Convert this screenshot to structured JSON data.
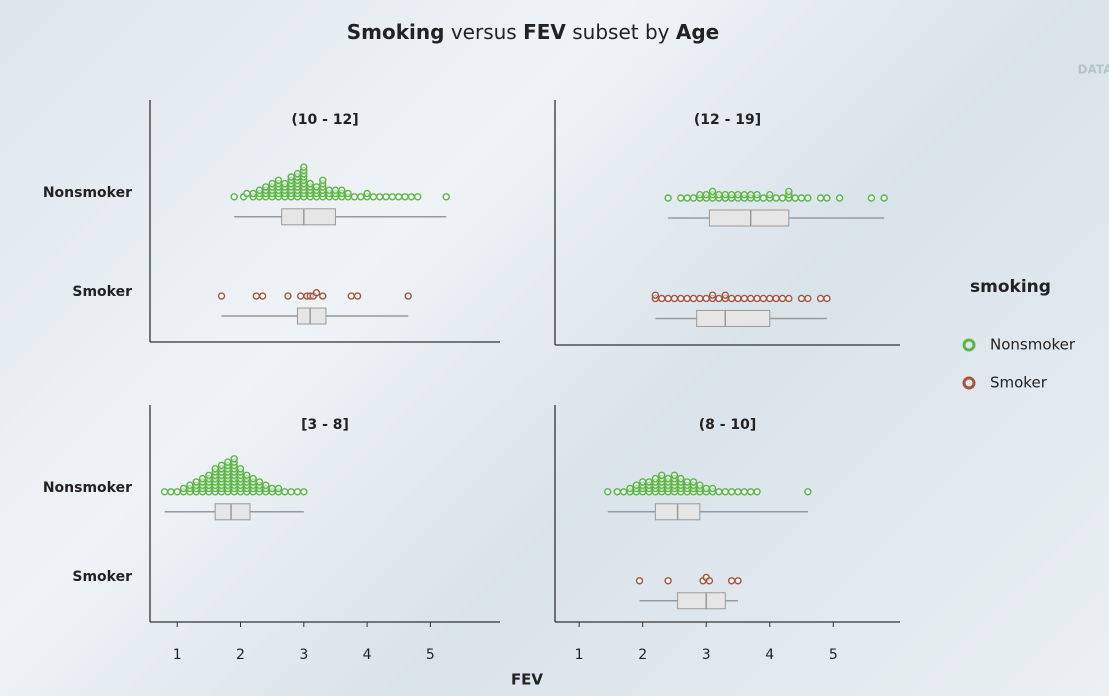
{
  "chart_data": {
    "type": "dotbox",
    "title": [
      {
        "text": "Smoking",
        "bold": true
      },
      {
        "text": "versus",
        "bold": false
      },
      {
        "text": "FEV",
        "bold": true
      },
      {
        "text": "subset by",
        "bold": false
      },
      {
        "text": "Age",
        "bold": true
      }
    ],
    "watermark": "DATA",
    "xlabel": "FEV",
    "xticks": [
      1,
      2,
      3,
      4,
      5
    ],
    "legend_title": "smoking",
    "series": [
      {
        "name": "Nonsmoker",
        "color": "#5cb546"
      },
      {
        "name": "Smoker",
        "color": "#a3553f"
      }
    ],
    "panels": [
      {
        "title": "(10 - 12]",
        "xlim": [
          0.57,
          6.1
        ],
        "groups": [
          {
            "points": [
              1.9,
              2.05,
              2.1,
              2.2,
              2.2,
              2.3,
              2.3,
              2.3,
              2.4,
              2.4,
              2.4,
              2.4,
              2.5,
              2.5,
              2.5,
              2.5,
              2.5,
              2.6,
              2.6,
              2.6,
              2.6,
              2.6,
              2.6,
              2.7,
              2.7,
              2.7,
              2.7,
              2.7,
              2.8,
              2.8,
              2.8,
              2.8,
              2.8,
              2.8,
              2.8,
              2.9,
              2.9,
              2.9,
              2.9,
              2.9,
              2.9,
              2.9,
              2.9,
              3.0,
              3.0,
              3.0,
              3.0,
              3.0,
              3.0,
              3.0,
              3.0,
              3.0,
              3.0,
              3.1,
              3.1,
              3.1,
              3.1,
              3.1,
              3.2,
              3.2,
              3.2,
              3.2,
              3.3,
              3.3,
              3.3,
              3.3,
              3.3,
              3.3,
              3.4,
              3.4,
              3.4,
              3.5,
              3.5,
              3.5,
              3.6,
              3.6,
              3.6,
              3.7,
              3.7,
              3.8,
              3.9,
              4.0,
              4.0,
              4.1,
              4.2,
              4.3,
              4.4,
              4.5,
              4.6,
              4.7,
              4.8,
              5.25
            ],
            "box": {
              "min": 1.9,
              "q1": 2.65,
              "median": 3.0,
              "q3": 3.5,
              "max": 5.25
            }
          },
          {
            "points": [
              1.7,
              2.25,
              2.35,
              2.75,
              2.95,
              3.05,
              3.1,
              3.15,
              3.2,
              3.3,
              3.75,
              3.85,
              4.65
            ],
            "box": {
              "min": 1.7,
              "q1": 2.9,
              "median": 3.1,
              "q3": 3.35,
              "max": 4.65
            }
          }
        ]
      },
      {
        "title": "(12 - 19]",
        "xlim": [
          0.62,
          6.05
        ],
        "groups": [
          {
            "points": [
              2.4,
              2.6,
              2.7,
              2.8,
              2.9,
              2.9,
              3.0,
              3.0,
              3.1,
              3.1,
              3.1,
              3.2,
              3.2,
              3.3,
              3.3,
              3.4,
              3.4,
              3.5,
              3.5,
              3.6,
              3.6,
              3.7,
              3.7,
              3.8,
              3.8,
              3.9,
              4.0,
              4.0,
              4.1,
              4.2,
              4.3,
              4.3,
              4.3,
              4.4,
              4.5,
              4.6,
              4.8,
              4.9,
              5.1,
              5.6,
              5.8
            ],
            "box": {
              "min": 2.4,
              "q1": 3.05,
              "median": 3.7,
              "q3": 4.3,
              "max": 5.8
            }
          },
          {
            "points": [
              2.2,
              2.2,
              2.3,
              2.4,
              2.5,
              2.6,
              2.7,
              2.8,
              2.9,
              3.0,
              3.1,
              3.1,
              3.2,
              3.3,
              3.3,
              3.4,
              3.5,
              3.6,
              3.7,
              3.8,
              3.9,
              4.0,
              4.1,
              4.2,
              4.3,
              4.5,
              4.6,
              4.8,
              4.9
            ],
            "box": {
              "min": 2.2,
              "q1": 2.85,
              "median": 3.3,
              "q3": 4.0,
              "max": 4.9
            }
          }
        ]
      },
      {
        "title": "[3 - 8]",
        "xlim": [
          0.57,
          6.1
        ],
        "groups": [
          {
            "points": [
              0.8,
              0.9,
              1.0,
              1.1,
              1.1,
              1.2,
              1.2,
              1.2,
              1.3,
              1.3,
              1.3,
              1.3,
              1.4,
              1.4,
              1.4,
              1.4,
              1.4,
              1.5,
              1.5,
              1.5,
              1.5,
              1.5,
              1.5,
              1.6,
              1.6,
              1.6,
              1.6,
              1.6,
              1.6,
              1.6,
              1.6,
              1.7,
              1.7,
              1.7,
              1.7,
              1.7,
              1.7,
              1.7,
              1.7,
              1.7,
              1.8,
              1.8,
              1.8,
              1.8,
              1.8,
              1.8,
              1.8,
              1.8,
              1.8,
              1.8,
              1.9,
              1.9,
              1.9,
              1.9,
              1.9,
              1.9,
              1.9,
              1.9,
              1.9,
              1.9,
              1.9,
              2.0,
              2.0,
              2.0,
              2.0,
              2.0,
              2.0,
              2.0,
              2.0,
              2.1,
              2.1,
              2.1,
              2.1,
              2.1,
              2.1,
              2.2,
              2.2,
              2.2,
              2.2,
              2.2,
              2.3,
              2.3,
              2.3,
              2.3,
              2.4,
              2.4,
              2.4,
              2.5,
              2.5,
              2.6,
              2.6,
              2.7,
              2.8,
              2.9,
              3.0
            ],
            "box": {
              "min": 0.8,
              "q1": 1.6,
              "median": 1.85,
              "q3": 2.15,
              "max": 3.0
            }
          },
          null
        ]
      },
      {
        "title": "(8 - 10]",
        "xlim": [
          0.62,
          6.05
        ],
        "groups": [
          {
            "points": [
              1.45,
              1.6,
              1.7,
              1.8,
              1.8,
              1.9,
              1.9,
              1.9,
              2.0,
              2.0,
              2.0,
              2.0,
              2.1,
              2.1,
              2.1,
              2.1,
              2.2,
              2.2,
              2.2,
              2.2,
              2.2,
              2.3,
              2.3,
              2.3,
              2.3,
              2.3,
              2.3,
              2.4,
              2.4,
              2.4,
              2.4,
              2.4,
              2.5,
              2.5,
              2.5,
              2.5,
              2.5,
              2.5,
              2.6,
              2.6,
              2.6,
              2.6,
              2.6,
              2.7,
              2.7,
              2.7,
              2.7,
              2.8,
              2.8,
              2.8,
              2.8,
              2.9,
              2.9,
              2.9,
              3.0,
              3.0,
              3.1,
              3.1,
              3.2,
              3.3,
              3.4,
              3.5,
              3.6,
              3.7,
              3.8,
              4.6
            ],
            "box": {
              "min": 1.45,
              "q1": 2.2,
              "median": 2.55,
              "q3": 2.9,
              "max": 4.6
            }
          },
          {
            "points": [
              1.95,
              2.4,
              2.95,
              3.0,
              3.05,
              3.4,
              3.5
            ],
            "box": {
              "min": 1.95,
              "q1": 2.55,
              "median": 3.0,
              "q3": 3.3,
              "max": 3.5
            }
          }
        ]
      }
    ]
  }
}
